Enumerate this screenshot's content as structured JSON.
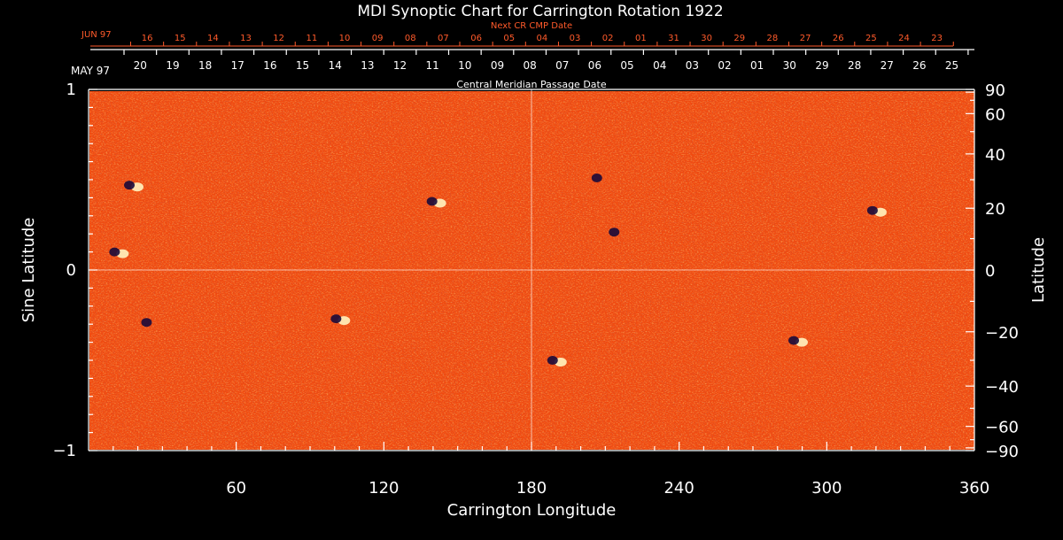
{
  "chart_data": {
    "type": "heatmap",
    "title": "MDI Synoptic Chart for Carrington Rotation 1922",
    "xlabel": "Carrington Longitude",
    "ylabel_left": "Sine Latitude",
    "ylabel_right": "Latitude",
    "xlim": [
      0,
      360
    ],
    "ylim": [
      -1,
      1
    ],
    "x_ticks": [
      {
        "value": 60,
        "label": "60"
      },
      {
        "value": 120,
        "label": "120"
      },
      {
        "value": 180,
        "label": "180"
      },
      {
        "value": 240,
        "label": "240"
      },
      {
        "value": 300,
        "label": "300"
      },
      {
        "value": 360,
        "label": "360"
      }
    ],
    "y_left_ticks": [
      {
        "value": 1,
        "label": "1"
      },
      {
        "value": 0,
        "label": "0"
      },
      {
        "value": -1,
        "label": "−1"
      }
    ],
    "y_right_ticks": [
      {
        "value": 90,
        "label": "90"
      },
      {
        "value": 60,
        "label": "60"
      },
      {
        "value": 40,
        "label": "40"
      },
      {
        "value": 20,
        "label": "20"
      },
      {
        "value": 0,
        "label": "0"
      },
      {
        "value": -20,
        "label": "−20"
      },
      {
        "value": -40,
        "label": "−40"
      },
      {
        "value": -60,
        "label": "−60"
      },
      {
        "value": -90,
        "label": "−90"
      }
    ],
    "cmp_axis": {
      "label": "Central Meridian Passage Date",
      "month_label": "MAY 97",
      "dates": [
        "20",
        "19",
        "18",
        "17",
        "16",
        "15",
        "14",
        "13",
        "12",
        "11",
        "10",
        "09",
        "08",
        "07",
        "06",
        "05",
        "04",
        "03",
        "02",
        "01",
        "30",
        "29",
        "28",
        "27",
        "26",
        "25"
      ]
    },
    "next_cmp_axis": {
      "label": "Next CR CMP Date",
      "month_label": "JUN 97",
      "dates": [
        "16",
        "15",
        "14",
        "13",
        "12",
        "11",
        "10",
        "09",
        "08",
        "07",
        "06",
        "05",
        "04",
        "03",
        "02",
        "01",
        "31",
        "30",
        "29",
        "28",
        "27",
        "26",
        "25",
        "24",
        "23"
      ]
    },
    "grid": "crosshair at longitude 180 and sine latitude 0",
    "colors": {
      "background": "#000000",
      "map_base": "#f04a10",
      "positive_polarity": "#fff4c0",
      "negative_polarity": "#1a0a3a",
      "annotation_red": "#ff5a2a"
    },
    "features": [
      {
        "lon": 141,
        "sinlat": 0.37,
        "polarity": "bipolar"
      },
      {
        "lon": 18,
        "sinlat": 0.46,
        "polarity": "bipolar"
      },
      {
        "lon": 12,
        "sinlat": 0.09,
        "polarity": "bipolar"
      },
      {
        "lon": 208,
        "sinlat": 0.5,
        "polarity": "negative"
      },
      {
        "lon": 215,
        "sinlat": 0.2,
        "polarity": "negative"
      },
      {
        "lon": 320,
        "sinlat": 0.32,
        "polarity": "bipolar"
      },
      {
        "lon": 190,
        "sinlat": -0.51,
        "polarity": "bipolar"
      },
      {
        "lon": 288,
        "sinlat": -0.4,
        "polarity": "bipolar"
      },
      {
        "lon": 25,
        "sinlat": -0.3,
        "polarity": "negative"
      },
      {
        "lon": 102,
        "sinlat": -0.28,
        "polarity": "bipolar"
      }
    ]
  }
}
